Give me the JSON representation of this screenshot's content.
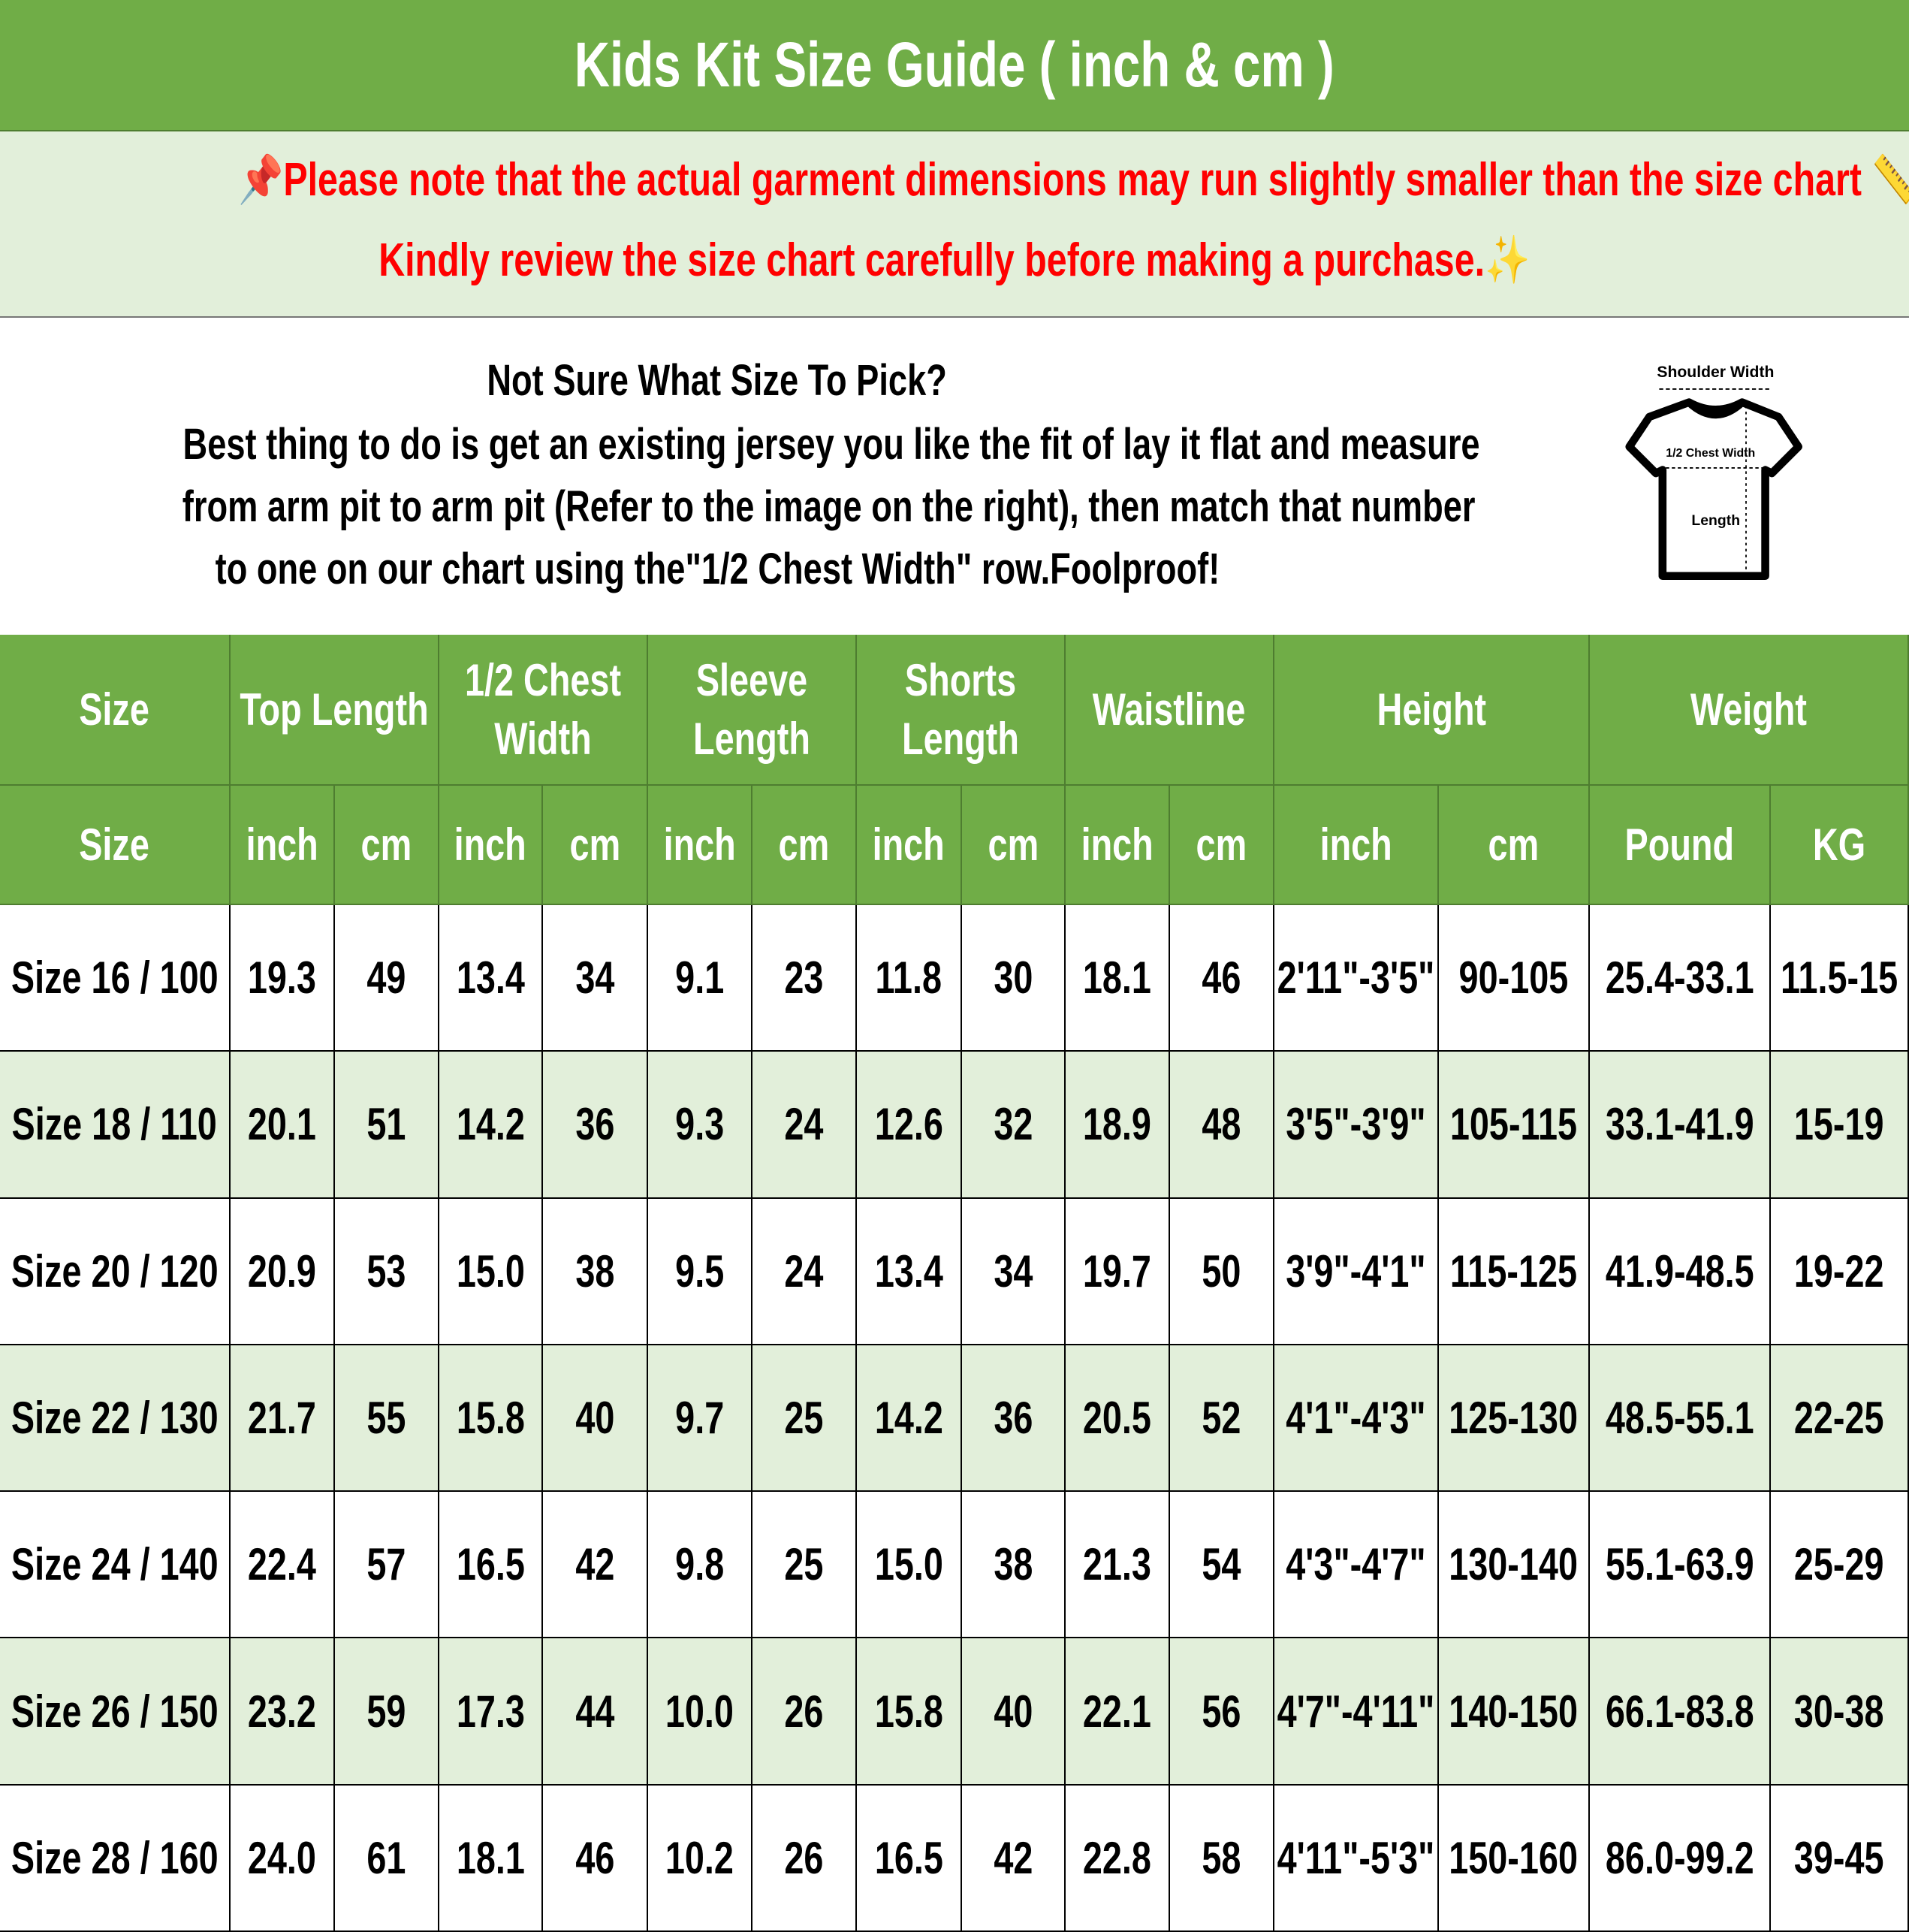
{
  "title": "Kids Kit Size Guide ( inch & cm )",
  "note": {
    "line1": "Please note that the actual garment dimensions may run slightly smaller than the size chart",
    "line1_end": ".",
    "line2": "Kindly review the size chart carefully before making a purchase.",
    "color": "#ff0000",
    "icons": [
      "pushpin-icon",
      "ruler-icon",
      "sparkles-icon"
    ]
  },
  "intro": {
    "heading": "Not Sure What Size To Pick?",
    "lines": [
      "Best thing to do is get an existing jersey you like the fit of lay it flat and measure",
      "from arm pit to arm pit (Refer to the image on the right), then match that number",
      "to one on our chart using the\"1/2 Chest Width\" row.Foolproof!"
    ]
  },
  "diagram": {
    "shoulder": "Shoulder Width",
    "chest": "1/2 Chest Width",
    "length": "Length"
  },
  "colors": {
    "header": "#70ad47",
    "stripe": "#e2efda",
    "note_text": "#ff0000"
  },
  "table": {
    "groups": [
      "Size",
      "Top Length",
      "1/2 Chest Width",
      "Sleeve Length",
      "Shorts Length",
      "Waistline",
      "Height",
      "Weight"
    ],
    "subheaders": [
      "Size",
      "inch",
      "cm",
      "inch",
      "cm",
      "inch",
      "cm",
      "inch",
      "cm",
      "inch",
      "cm",
      "inch",
      "cm",
      "Pound",
      "KG"
    ],
    "rows": [
      [
        "Size 16 / 100",
        "19.3",
        "49",
        "13.4",
        "34",
        "9.1",
        "23",
        "11.8",
        "30",
        "18.1",
        "46",
        "2'11\"-3'5\"",
        "90-105",
        "25.4-33.1",
        "11.5-15"
      ],
      [
        "Size 18 / 110",
        "20.1",
        "51",
        "14.2",
        "36",
        "9.3",
        "24",
        "12.6",
        "32",
        "18.9",
        "48",
        "3'5\"-3'9\"",
        "105-115",
        "33.1-41.9",
        "15-19"
      ],
      [
        "Size 20 / 120",
        "20.9",
        "53",
        "15.0",
        "38",
        "9.5",
        "24",
        "13.4",
        "34",
        "19.7",
        "50",
        "3'9\"-4'1\"",
        "115-125",
        "41.9-48.5",
        "19-22"
      ],
      [
        "Size 22 / 130",
        "21.7",
        "55",
        "15.8",
        "40",
        "9.7",
        "25",
        "14.2",
        "36",
        "20.5",
        "52",
        "4'1\"-4'3\"",
        "125-130",
        "48.5-55.1",
        "22-25"
      ],
      [
        "Size 24 / 140",
        "22.4",
        "57",
        "16.5",
        "42",
        "9.8",
        "25",
        "15.0",
        "38",
        "21.3",
        "54",
        "4'3\"-4'7\"",
        "130-140",
        "55.1-63.9",
        "25-29"
      ],
      [
        "Size 26 / 150",
        "23.2",
        "59",
        "17.3",
        "44",
        "10.0",
        "26",
        "15.8",
        "40",
        "22.1",
        "56",
        "4'7\"-4'11\"",
        "140-150",
        "66.1-83.8",
        "30-38"
      ],
      [
        "Size 28 / 160",
        "24.0",
        "61",
        "18.1",
        "46",
        "10.2",
        "26",
        "16.5",
        "42",
        "22.8",
        "58",
        "4'11\"-5'3\"",
        "150-160",
        "86.0-99.2",
        "39-45"
      ]
    ]
  }
}
